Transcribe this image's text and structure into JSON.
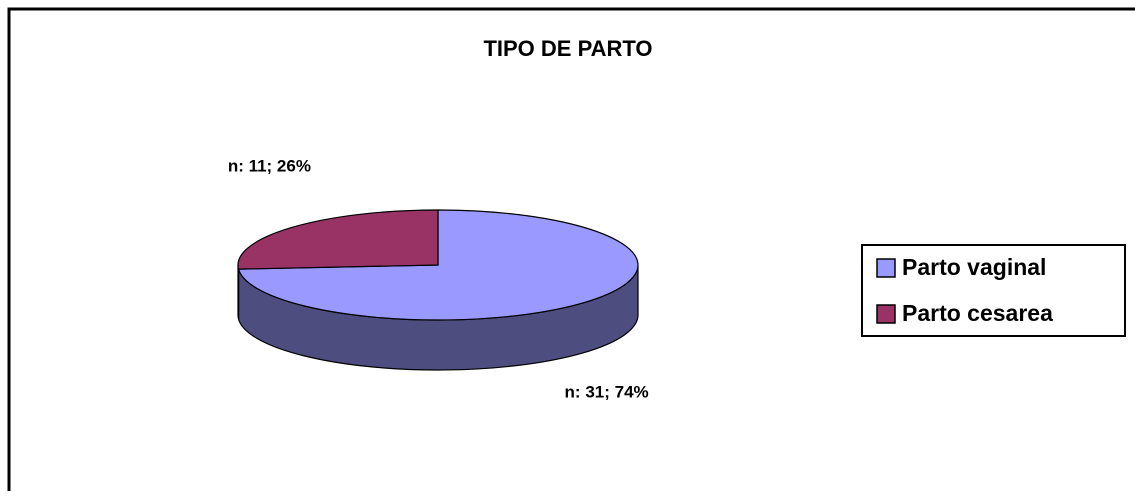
{
  "chart_data": {
    "type": "pie3d",
    "title": "TIPO DE PARTO",
    "categories": [
      "Parto vaginal",
      "Parto cesarea"
    ],
    "values": [
      31,
      11
    ],
    "value_labels": [
      "n: 31; 74%",
      "n: 11; 26%"
    ],
    "colors": [
      "#9999ff",
      "#993366"
    ],
    "legend": "right"
  }
}
